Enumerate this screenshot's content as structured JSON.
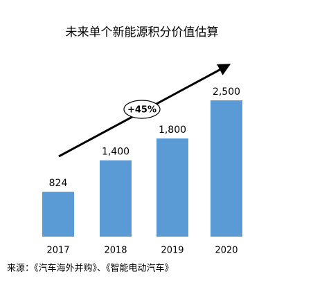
{
  "chart_data": {
    "type": "bar",
    "title": "未来单个新能源积分价值估算",
    "categories": [
      "2017",
      "2018",
      "2019",
      "2020"
    ],
    "values": [
      824,
      1400,
      1800,
      2500
    ],
    "value_labels": [
      "824",
      "1,400",
      "1,800",
      "2,500"
    ],
    "color": "#5b9bd5",
    "annotation": "+45%",
    "source": "来源：《汽车海外并购》、《智能电动汽车》"
  }
}
